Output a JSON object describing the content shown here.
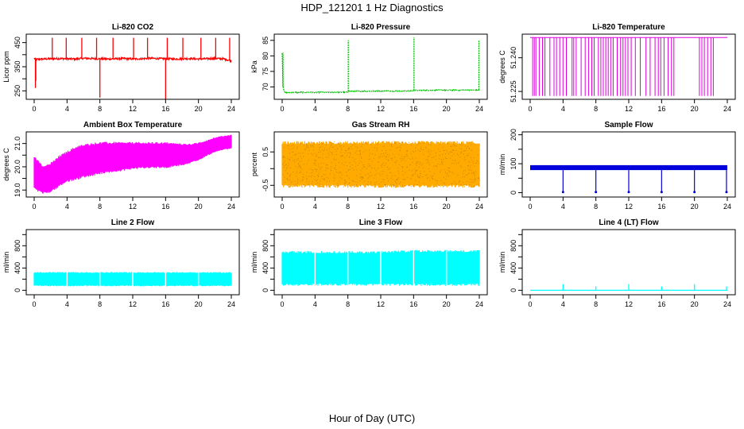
{
  "figure": {
    "title": "HDP_121201  1 Hz Diagnostics",
    "xlabel": "Hour of Day (UTC)"
  },
  "chart_data": [
    {
      "type": "line",
      "title": "Li-820 CO2",
      "ylabel": "Licor ppm",
      "color": "#ff0000",
      "xlim": [
        0,
        24
      ],
      "xticks": [
        "0",
        "4",
        "8",
        "12",
        "16",
        "20",
        "24"
      ],
      "ylim": [
        215,
        485
      ],
      "yticks": [
        250,
        300,
        350,
        400,
        450
      ],
      "ytick_labels": [
        "250",
        "",
        "350",
        "",
        "450"
      ],
      "series": [
        {
          "name": "CO2",
          "style": "noisy",
          "x": [
            0,
            0.2,
            1,
            2,
            3,
            4,
            5,
            6,
            7,
            8,
            9,
            10,
            11,
            12,
            13,
            14,
            15,
            16,
            17,
            18,
            19,
            20,
            21,
            22,
            23,
            24
          ],
          "y": [
            385,
            380,
            382,
            383,
            384,
            383,
            382,
            385,
            384,
            383,
            382,
            383,
            384,
            382,
            383,
            385,
            384,
            383,
            382,
            383,
            384,
            382,
            383,
            384,
            383,
            375
          ],
          "noise": 4,
          "spikes": [
            {
              "x": 0.15,
              "y": 262
            },
            {
              "x": 0.2,
              "y": 292
            },
            {
              "x": 2.2,
              "y": 470
            },
            {
              "x": 3.9,
              "y": 470
            },
            {
              "x": 5.8,
              "y": 470
            },
            {
              "x": 7.6,
              "y": 470
            },
            {
              "x": 8.0,
              "y": 222
            },
            {
              "x": 9.6,
              "y": 470
            },
            {
              "x": 12.1,
              "y": 470
            },
            {
              "x": 13.8,
              "y": 470
            },
            {
              "x": 16.0,
              "y": 210
            },
            {
              "x": 16.2,
              "y": 470
            },
            {
              "x": 18.1,
              "y": 470
            },
            {
              "x": 20.3,
              "y": 470
            },
            {
              "x": 22.1,
              "y": 470
            },
            {
              "x": 23.8,
              "y": 470
            }
          ]
        }
      ]
    },
    {
      "type": "line",
      "title": "Li-820 Pressure",
      "ylabel": "kPa",
      "color": "#00bb00",
      "xlim": [
        0,
        24
      ],
      "xticks": [
        "0",
        "4",
        "8",
        "12",
        "16",
        "20",
        "24"
      ],
      "ylim": [
        66,
        87
      ],
      "yticks": [
        70,
        75,
        80,
        85
      ],
      "ytick_labels": [
        "70",
        "75",
        "80",
        "85"
      ],
      "series": [
        {
          "name": "Pressure",
          "style": "step",
          "x": [
            0,
            0.1,
            0.3,
            8,
            8.05,
            16,
            16.05,
            24
          ],
          "y": [
            81,
            70,
            68.2,
            68.3,
            68.6,
            68.7,
            68.9,
            69.0
          ],
          "noise": 0.15,
          "spikes": [
            {
              "x": 0.1,
              "y": 81
            },
            {
              "x": 8.05,
              "y": 85
            },
            {
              "x": 16.05,
              "y": 86
            },
            {
              "x": 23.95,
              "y": 85
            }
          ]
        }
      ]
    },
    {
      "type": "line",
      "title": "Li-820 Temperature",
      "ylabel": "degrees C",
      "color": "#dd00dd",
      "xlim": [
        0,
        24
      ],
      "xticks": [
        "0",
        "4",
        "8",
        "12",
        "16",
        "20",
        "24"
      ],
      "ylim": [
        51.2215,
        51.2505
      ],
      "yticks": [
        51.225,
        51.24
      ],
      "ytick_labels": [
        "51.225",
        "51.240"
      ],
      "series": [
        {
          "name": "Temperature",
          "style": "flicker",
          "base": 51.249,
          "low": 51.223,
          "drops": [
            0.3,
            0.5,
            0.7,
            1.1,
            1.5,
            1.8,
            2.4,
            2.9,
            3.2,
            3.6,
            4.0,
            4.4,
            5.1,
            5.3,
            5.6,
            6.2,
            6.7,
            7.1,
            7.5,
            7.8,
            8.3,
            8.6,
            8.9,
            9.2,
            9.5,
            9.8,
            10.1,
            10.6,
            11.0,
            11.3,
            11.6,
            11.9,
            12.3,
            12.8,
            13.4,
            14.1,
            14.6,
            15.2,
            15.6,
            15.9,
            16.3,
            16.8,
            17.2,
            17.5,
            20.6,
            20.9,
            21.2,
            21.6,
            22.0,
            22.3
          ]
        }
      ]
    },
    {
      "type": "area",
      "title": "Ambient Box Temperature",
      "ylabel": "degrees C",
      "color": "#ff00ff",
      "xlim": [
        0,
        24
      ],
      "xticks": [
        "0",
        "4",
        "8",
        "12",
        "16",
        "20",
        "24"
      ],
      "ylim": [
        18.7,
        21.5
      ],
      "yticks": [
        19.0,
        19.5,
        20.0,
        20.5,
        21.0
      ],
      "ytick_labels": [
        "19.0",
        "",
        "20.0",
        "",
        "21.0"
      ],
      "series": [
        {
          "name": "Upper",
          "x": [
            0,
            1,
            2,
            3,
            4,
            5,
            6,
            8,
            10,
            12,
            14,
            16,
            18,
            19,
            20,
            21,
            22,
            23,
            24
          ],
          "y": [
            20.4,
            20.0,
            20.1,
            20.4,
            20.6,
            20.8,
            20.9,
            21.0,
            21.0,
            21.0,
            21.0,
            21.0,
            20.95,
            20.95,
            21.0,
            21.1,
            21.25,
            21.3,
            21.35
          ]
        },
        {
          "name": "Lower",
          "x": [
            0,
            1,
            2,
            3,
            4,
            5,
            6,
            8,
            10,
            12,
            14,
            16,
            18,
            19,
            20,
            21,
            22,
            23,
            24
          ],
          "y": [
            19.1,
            18.9,
            18.95,
            19.2,
            19.4,
            19.5,
            19.6,
            19.75,
            19.85,
            19.95,
            20.0,
            20.0,
            20.1,
            20.2,
            20.3,
            20.5,
            20.65,
            20.75,
            20.8
          ]
        }
      ]
    },
    {
      "type": "area",
      "title": "Gas Stream RH",
      "ylabel": "percent",
      "color": "#ffaa00",
      "xlim": [
        0,
        24
      ],
      "xticks": [
        "0",
        "4",
        "8",
        "12",
        "16",
        "20",
        "24"
      ],
      "ylim": [
        -0.85,
        1.1
      ],
      "yticks": [
        -0.5,
        0.0,
        0.5
      ],
      "ytick_labels": [
        "-0.5",
        "",
        "0.5"
      ],
      "series": [
        {
          "name": "Upper",
          "x": [
            0,
            24
          ],
          "y": [
            0.75,
            0.75
          ]
        },
        {
          "name": "Lower",
          "x": [
            0,
            24
          ],
          "y": [
            -0.5,
            -0.5
          ]
        }
      ]
    },
    {
      "type": "line",
      "title": "Sample Flow",
      "ylabel": "ml/min",
      "color": "#0000dd",
      "xlim": [
        0,
        24
      ],
      "xticks": [
        "0",
        "4",
        "8",
        "12",
        "16",
        "20",
        "24"
      ],
      "ylim": [
        -15,
        210
      ],
      "yticks": [
        0,
        50,
        100,
        150,
        200
      ],
      "ytick_labels": [
        "0",
        "",
        "100",
        "",
        "200"
      ],
      "series": [
        {
          "name": "Flow",
          "style": "band",
          "x": [
            0,
            24
          ],
          "y": [
            80,
            80
          ],
          "upper": 95,
          "lower": 78,
          "spikes": [
            {
              "x": 4.0,
              "y": 2
            },
            {
              "x": 8.0,
              "y": 2
            },
            {
              "x": 12.0,
              "y": 2
            },
            {
              "x": 16.0,
              "y": 2
            },
            {
              "x": 20.0,
              "y": 2
            },
            {
              "x": 23.9,
              "y": 2
            }
          ]
        }
      ]
    },
    {
      "type": "area",
      "title": "Line 2 Flow",
      "ylabel": "ml/min",
      "color": "#00ffff",
      "xlim": [
        0,
        24
      ],
      "xticks": [
        "0",
        "4",
        "8",
        "12",
        "16",
        "20",
        "24"
      ],
      "ylim": [
        -80,
        1090
      ],
      "yticks": [
        0,
        200,
        400,
        600,
        800,
        1000
      ],
      "ytick_labels": [
        "0",
        "",
        "400",
        "",
        "800",
        ""
      ],
      "series": [
        {
          "name": "Upper",
          "x": [
            0,
            24
          ],
          "y": [
            315,
            315
          ]
        },
        {
          "name": "Lower",
          "x": [
            0,
            24
          ],
          "y": [
            85,
            85
          ]
        }
      ],
      "gaps": [
        4,
        8,
        12,
        16,
        20
      ]
    },
    {
      "type": "area",
      "title": "Line 3 Flow",
      "ylabel": "ml/min",
      "color": "#00ffff",
      "xlim": [
        0,
        24
      ],
      "xticks": [
        "0",
        "4",
        "8",
        "12",
        "16",
        "20",
        "24"
      ],
      "ylim": [
        -80,
        1090
      ],
      "yticks": [
        0,
        200,
        400,
        600,
        800,
        1000
      ],
      "ytick_labels": [
        "0",
        "",
        "400",
        "",
        "800",
        ""
      ],
      "series": [
        {
          "name": "Upper",
          "x": [
            0,
            12,
            16,
            24
          ],
          "y": [
            670,
            670,
            690,
            690
          ]
        },
        {
          "name": "Lower",
          "x": [
            0,
            24
          ],
          "y": [
            115,
            115
          ]
        }
      ],
      "gaps": [
        4,
        8,
        12,
        16,
        20
      ]
    },
    {
      "type": "line",
      "title": "Line 4 (LT) Flow",
      "ylabel": "ml/min",
      "color": "#00ffff",
      "xlim": [
        0,
        24
      ],
      "xticks": [
        "0",
        "4",
        "8",
        "12",
        "16",
        "20",
        "24"
      ],
      "ylim": [
        -80,
        1090
      ],
      "yticks": [
        0,
        200,
        400,
        600,
        800,
        1000
      ],
      "ytick_labels": [
        "0",
        "",
        "400",
        "",
        "800",
        ""
      ],
      "series": [
        {
          "name": "Flow",
          "style": "flat",
          "x": [
            0,
            24
          ],
          "y": [
            0,
            0
          ],
          "spikes": [
            {
              "x": 4.0,
              "y": 110
            },
            {
              "x": 8.0,
              "y": 70
            },
            {
              "x": 12.0,
              "y": 110
            },
            {
              "x": 16.0,
              "y": 70
            },
            {
              "x": 20.0,
              "y": 110
            },
            {
              "x": 23.9,
              "y": 70
            }
          ]
        }
      ]
    }
  ]
}
